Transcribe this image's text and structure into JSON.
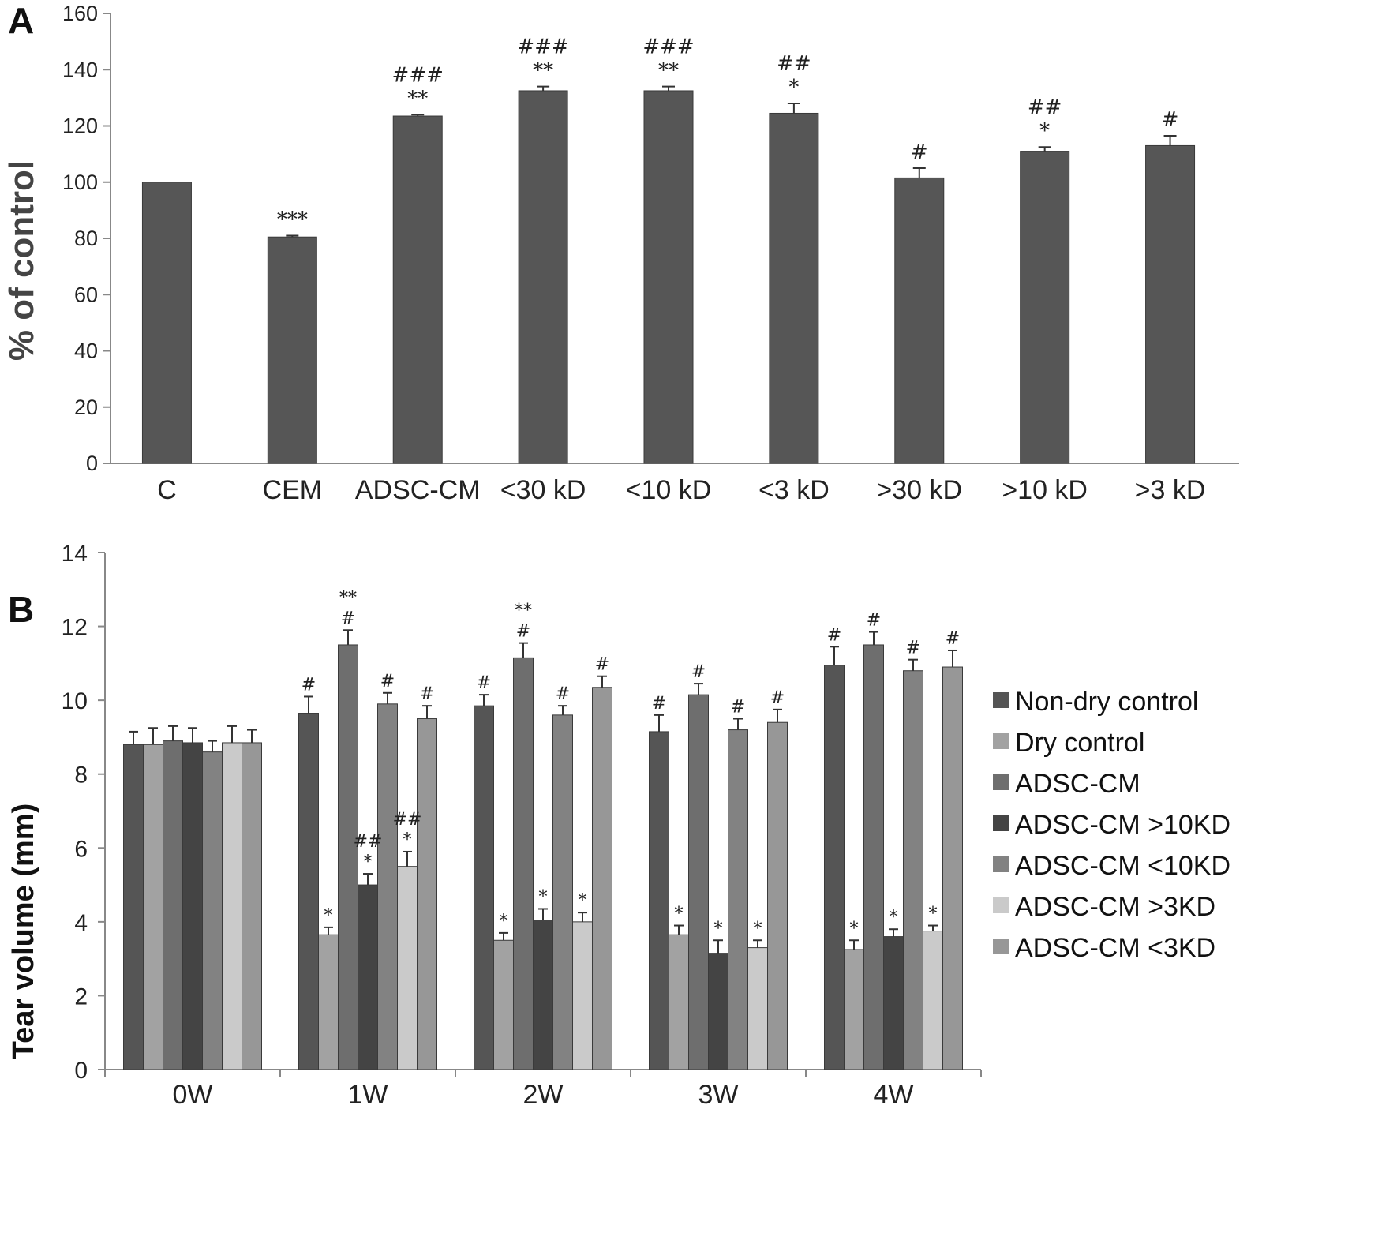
{
  "chart_data": [
    {
      "panel": "A",
      "type": "bar",
      "title": "",
      "xlabel": "",
      "ylabel": "% of control",
      "ylim": [
        0,
        160
      ],
      "yticks": [
        0,
        20,
        40,
        60,
        80,
        100,
        120,
        140,
        160
      ],
      "categories": [
        "C",
        "CEM",
        "ADSC-CM",
        "<30 kD",
        "<10 kD",
        "<3 kD",
        ">30 kD",
        ">10 kD",
        ">3 kD"
      ],
      "values": [
        100,
        80.5,
        123.5,
        132.5,
        132.5,
        124.5,
        101.5,
        111,
        113
      ],
      "errors": [
        0,
        0.5,
        0.5,
        1.5,
        1.5,
        3.5,
        3.5,
        1.5,
        3.5
      ],
      "annotations": [
        [],
        [
          "***"
        ],
        [
          "**",
          "###"
        ],
        [
          "**",
          "###"
        ],
        [
          "**",
          "###"
        ],
        [
          "*",
          "##"
        ],
        [
          "#"
        ],
        [
          "*",
          "##"
        ],
        [
          "#"
        ]
      ],
      "bar_color": "#565656"
    },
    {
      "panel": "B",
      "type": "bar",
      "title": "",
      "xlabel": "",
      "ylabel": "Tear volume (mm)",
      "ylim": [
        0,
        14
      ],
      "yticks": [
        0,
        2,
        4,
        6,
        8,
        10,
        12,
        14
      ],
      "categories": [
        "0W",
        "1W",
        "2W",
        "3W",
        "4W"
      ],
      "legend_position": "right",
      "series": [
        {
          "name": "Non-dry control",
          "color": "#555555",
          "values": [
            8.8,
            9.65,
            9.85,
            9.15,
            10.95
          ],
          "errors": [
            0.35,
            0.45,
            0.3,
            0.45,
            0.5
          ],
          "annotations": [
            [],
            [
              "#"
            ],
            [
              "#"
            ],
            [
              "#"
            ],
            [
              "#"
            ]
          ]
        },
        {
          "name": "Dry control",
          "color": "#a2a2a2",
          "values": [
            8.8,
            3.65,
            3.5,
            3.65,
            3.25
          ],
          "errors": [
            0.45,
            0.2,
            0.2,
            0.25,
            0.25
          ],
          "annotations": [
            [],
            [
              "*"
            ],
            [
              "*"
            ],
            [
              "*"
            ],
            [
              "*"
            ]
          ]
        },
        {
          "name": "ADSC-CM",
          "color": "#6e6e6e",
          "values": [
            8.9,
            11.5,
            11.15,
            10.15,
            11.5
          ],
          "errors": [
            0.4,
            0.4,
            0.4,
            0.3,
            0.35
          ],
          "annotations": [
            [],
            [
              "#",
              "**"
            ],
            [
              "#",
              "**"
            ],
            [
              "#"
            ],
            [
              "#"
            ]
          ]
        },
        {
          "name": "ADSC-CM >10KD",
          "color": "#444444",
          "values": [
            8.85,
            5.0,
            4.05,
            3.15,
            3.6
          ],
          "errors": [
            0.4,
            0.3,
            0.3,
            0.35,
            0.2
          ],
          "annotations": [
            [],
            [
              "*",
              "##"
            ],
            [
              "*"
            ],
            [
              "*"
            ],
            [
              "*"
            ]
          ]
        },
        {
          "name": "ADSC-CM <10KD",
          "color": "#828282",
          "values": [
            8.6,
            9.9,
            9.6,
            9.2,
            10.8
          ],
          "errors": [
            0.3,
            0.3,
            0.25,
            0.3,
            0.3
          ],
          "annotations": [
            [],
            [
              "#"
            ],
            [
              "#"
            ],
            [
              "#"
            ],
            [
              "#"
            ]
          ]
        },
        {
          "name": "ADSC-CM >3KD",
          "color": "#cacaca",
          "values": [
            8.85,
            5.5,
            4.0,
            3.3,
            3.75
          ],
          "errors": [
            0.45,
            0.4,
            0.25,
            0.2,
            0.15
          ],
          "annotations": [
            [],
            [
              "*",
              "##"
            ],
            [
              "*"
            ],
            [
              "*"
            ],
            [
              "*"
            ]
          ]
        },
        {
          "name": "ADSC-CM <3KD",
          "color": "#979797",
          "values": [
            8.85,
            9.5,
            10.35,
            9.4,
            10.9
          ],
          "errors": [
            0.35,
            0.35,
            0.3,
            0.35,
            0.45
          ],
          "annotations": [
            [],
            [
              "#"
            ],
            [
              "#"
            ],
            [
              "#"
            ],
            [
              "#"
            ]
          ]
        }
      ]
    }
  ],
  "panel_labels": [
    "A",
    "B"
  ]
}
